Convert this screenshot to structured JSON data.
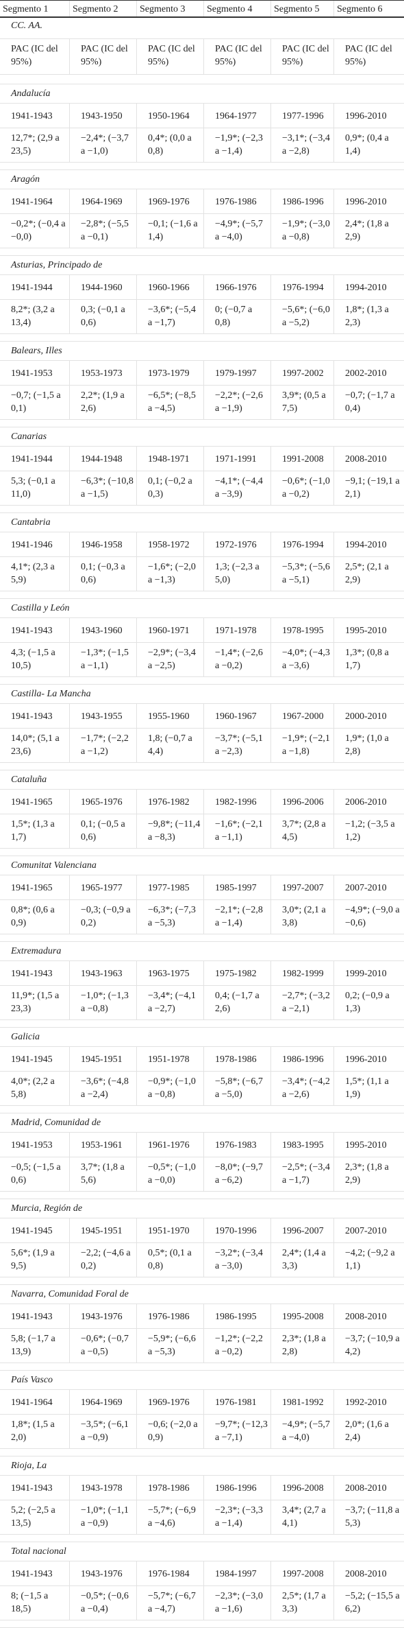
{
  "table": {
    "header": [
      "Segmento 1",
      "Segmento 2",
      "Segmento 3",
      "Segmento 4",
      "Segmento 5",
      "Segmento 6"
    ],
    "section": "CC. AA.",
    "subheader": [
      "PAC (IC del 95%)",
      "PAC (IC del 95%)",
      "PAC (IC del 95%)",
      "PAC (IC del 95%)",
      "PAC (IC del 95%)",
      "PAC (IC del 95%)"
    ],
    "groups": [
      {
        "name": "Andalucía",
        "periods": [
          "1941-1943",
          "1943-1950",
          "1950-1964",
          "1964-1977",
          "1977-1996",
          "1996-2010"
        ],
        "values": [
          "12,7*; (2,9 a 23,5)",
          "−2,4*; (−3,7 a −1,0)",
          "0,4*; (0,0 a 0,8)",
          "−1,9*; (−2,3 a −1,4)",
          "−3,1*; (−3,4 a −2,8)",
          "0,9*; (0,4 a 1,4)"
        ]
      },
      {
        "name": "Aragón",
        "periods": [
          "1941-1964",
          "1964-1969",
          "1969-1976",
          "1976-1986",
          "1986-1996",
          "1996-2010"
        ],
        "values": [
          "−0,2*; (−0,4 a −0,0)",
          "−2,8*; (−5,5 a −0,1)",
          "−0,1; (−1,6 a 1,4)",
          "−4,9*; (−5,7 a −4,0)",
          "−1,9*; (−3,0 a −0,8)",
          "2,4*; (1,8 a 2,9)"
        ]
      },
      {
        "name": "Asturias, Principado de",
        "periods": [
          "1941-1944",
          "1944-1960",
          "1960-1966",
          "1966-1976",
          "1976-1994",
          "1994-2010"
        ],
        "values": [
          "8,2*; (3,2 a 13,4)",
          "0,3; (−0,1 a 0,6)",
          "−3,6*; (−5,4 a −1,7)",
          "0; (−0,7 a 0,8)",
          "−5,6*; (−6,0 a −5,2)",
          "1,8*; (1,3 a 2,3)"
        ]
      },
      {
        "name": "Balears, Illes",
        "periods": [
          "1941-1953",
          "1953-1973",
          "1973-1979",
          "1979-1997",
          "1997-2002",
          "2002-2010"
        ],
        "values": [
          "−0,7; (−1,5 a 0,1)",
          "2,2*; (1,9 a 2,6)",
          "−6,5*; (−8,5 a −4,5)",
          "−2,2*; (−2,6 a −1,9)",
          "3,9*; (0,5 a 7,5)",
          "−0,7; (−1,7 a 0,4)"
        ]
      },
      {
        "name": "Canarias",
        "periods": [
          "1941-1944",
          "1944-1948",
          "1948-1971",
          "1971-1991",
          "1991-2008",
          "2008-2010"
        ],
        "values": [
          "5,3; (−0,1 a 11,0)",
          "−6,3*; (−10,8 a −1,5)",
          "0,1; (−0,2 a 0,3)",
          "−4,1*; (−4,4 a −3,9)",
          "−0,6*; (−1,0 a −0,2)",
          "−9,1; (−19,1 a 2,1)"
        ]
      },
      {
        "name": "Cantabria",
        "periods": [
          "1941-1946",
          "1946-1958",
          "1958-1972",
          "1972-1976",
          "1976-1994",
          "1994-2010"
        ],
        "values": [
          "4,1*; (2,3 a 5,9)",
          "0,1; (−0,3 a 0,6)",
          "−1,6*; (−2,0 a −1,3)",
          "1,3; (−2,3 a 5,0)",
          "−5,3*; (−5,6 a −5,1)",
          "2,5*; (2,1 a 2,9)"
        ]
      },
      {
        "name": "Castilla y León",
        "periods": [
          "1941-1943",
          "1943-1960",
          "1960-1971",
          "1971-1978",
          "1978-1995",
          "1995-2010"
        ],
        "values": [
          "4,3; (−1,5 a 10,5)",
          "−1,3*; (−1,5 a −1,1)",
          "−2,9*; (−3,4 a −2,5)",
          "−1,4*; (−2,6 a −0,2)",
          "−4,0*; (−4,3 a −3,6)",
          "1,3*; (0,8 a 1,7)"
        ]
      },
      {
        "name": "Castilla- La Mancha",
        "periods": [
          "1941-1943",
          "1943-1955",
          "1955-1960",
          "1960-1967",
          "1967-2000",
          "2000-2010"
        ],
        "values": [
          "14,0*; (5,1 a 23,6)",
          "−1,7*; (−2,2 a −1,2)",
          "1,8; (−0,7 a 4,4)",
          "−3,7*; (−5,1 a −2,3)",
          "−1,9*; (−2,1 a −1,8)",
          "1,9*; (1,0 a 2,8)"
        ]
      },
      {
        "name": "Cataluña",
        "periods": [
          "1941-1965",
          "1965-1976",
          "1976-1982",
          "1982-1996",
          "1996-2006",
          "2006-2010"
        ],
        "values": [
          "1,5*; (1,3 a 1,7)",
          "0,1; (−0,5 a 0,6)",
          "−9,8*; (−11,4 a −8,3)",
          "−1,6*; (−2,1 a −1,1)",
          "3,7*; (2,8 a 4,5)",
          "−1,2; (−3,5 a 1,2)"
        ]
      },
      {
        "name": "Comunitat Valenciana",
        "periods": [
          "1941-1965",
          "1965-1977",
          "1977-1985",
          "1985-1997",
          "1997-2007",
          "2007-2010"
        ],
        "values": [
          "0,8*; (0,6 a 0,9)",
          "−0,3; (−0,9 a 0,2)",
          "−6,3*; (−7,3 a −5,3)",
          "−2,1*; (−2,8 a −1,4)",
          "3,0*; (2,1 a 3,8)",
          "−4,9*; (−9,0 a −0,6)"
        ]
      },
      {
        "name": "Extremadura",
        "periods": [
          "1941-1943",
          "1943-1963",
          "1963-1975",
          "1975-1982",
          "1982-1999",
          "1999-2010"
        ],
        "values": [
          "11,9*; (1,5 a 23,3)",
          "−1,0*; (−1,3 a −0,8)",
          "−3,4*; (−4,1 a −2,7)",
          "0,4; (−1,7 a 2,6)",
          "−2,7*; (−3,2 a −2,1)",
          "0,2; (−0,9 a 1,3)"
        ]
      },
      {
        "name": "Galicia",
        "periods": [
          "1941-1945",
          "1945-1951",
          "1951-1978",
          "1978-1986",
          "1986-1996",
          "1996-2010"
        ],
        "values": [
          "4,0*; (2,2 a 5,8)",
          "−3,6*; (−4,8 a −2,4)",
          "−0,9*; (−1,0 a −0,8)",
          "−5,8*; (−6,7 a −5,0)",
          "−3,4*; (−4,2 a −2,6)",
          "1,5*; (1,1 a 1,9)"
        ]
      },
      {
        "name": "Madrid, Comunidad de",
        "periods": [
          "1941-1953",
          "1953-1961",
          "1961-1976",
          "1976-1983",
          "1983-1995",
          "1995-2010"
        ],
        "values": [
          "−0,5; (−1,5 a 0,6)",
          "3,7*; (1,8 a 5,6)",
          "−0,5*; (−1,0 a −0,0)",
          "−8,0*; (−9,7 a −6,2)",
          "−2,5*; (−3,4 a −1,7)",
          "2,3*; (1,8 a 2,9)"
        ]
      },
      {
        "name": "Murcia, Región de",
        "periods": [
          "1941-1945",
          "1945-1951",
          "1951-1970",
          "1970-1996",
          "1996-2007",
          "2007-2010"
        ],
        "values": [
          "5,6*; (1,9 a 9,5)",
          "−2,2; (−4,6 a 0,2)",
          "0,5*; (0,1 a 0,8)",
          "−3,2*; (−3,4 a −3,0)",
          "2,4*; (1,4 a 3,3)",
          "−4,2; (−9,2 a 1,1)"
        ]
      },
      {
        "name": "Navarra, Comunidad Foral de",
        "periods": [
          "1941-1943",
          "1943-1976",
          "1976-1986",
          "1986-1995",
          "1995-2008",
          "2008-2010"
        ],
        "values": [
          "5,8; (−1,7 a 13,9)",
          "−0,6*; (−0,7 a −0,5)",
          "−5,9*; (−6,6 a −5,3)",
          "−1,2*; (−2,2 a −0,2)",
          "2,3*; (1,8 a 2,8)",
          "−3,7; (−10,9 a 4,2)"
        ]
      },
      {
        "name": "País Vasco",
        "periods": [
          "1941-1964",
          "1964-1969",
          "1969-1976",
          "1976-1981",
          "1981-1992",
          "1992-2010"
        ],
        "values": [
          "1,8*; (1,5 a 2,0)",
          "−3,5*; (−6,1 a −0,9)",
          "−0,6; (−2,0 a 0,9)",
          "−9,7*; (−12,3 a −7,1)",
          "−4,9*; (−5,7 a −4,0)",
          "2,0*; (1,6 a 2,4)"
        ]
      },
      {
        "name": "Rioja, La",
        "periods": [
          "1941-1943",
          "1943-1978",
          "1978-1986",
          "1986-1996",
          "1996-2008",
          "2008-2010"
        ],
        "values": [
          "5,2; (−2,5 a 13,5)",
          "−1,0*; (−1,1 a −0,9)",
          "−5,7*; (−6,9 a −4,6)",
          "−2,3*; (−3,3 a −1,4)",
          "3,4*; (2,7 a 4,1)",
          "−3,7; (−11,8 a 5,3)"
        ]
      },
      {
        "name": "Total nacional",
        "periods": [
          "1941-1943",
          "1943-1976",
          "1976-1984",
          "1984-1997",
          "1997-2008",
          "2008-2010"
        ],
        "values": [
          "8; (−1,5 a 18,5)",
          "−0,5*; (−0,6 a −0,4)",
          "−5,7*; (−6,7 a −4,7)",
          "−2,3*; (−3,0 a −1,6)",
          "2,5*; (1,7 a 3,3)",
          "−5,2; (−15,5 a 6,2)"
        ]
      }
    ]
  }
}
